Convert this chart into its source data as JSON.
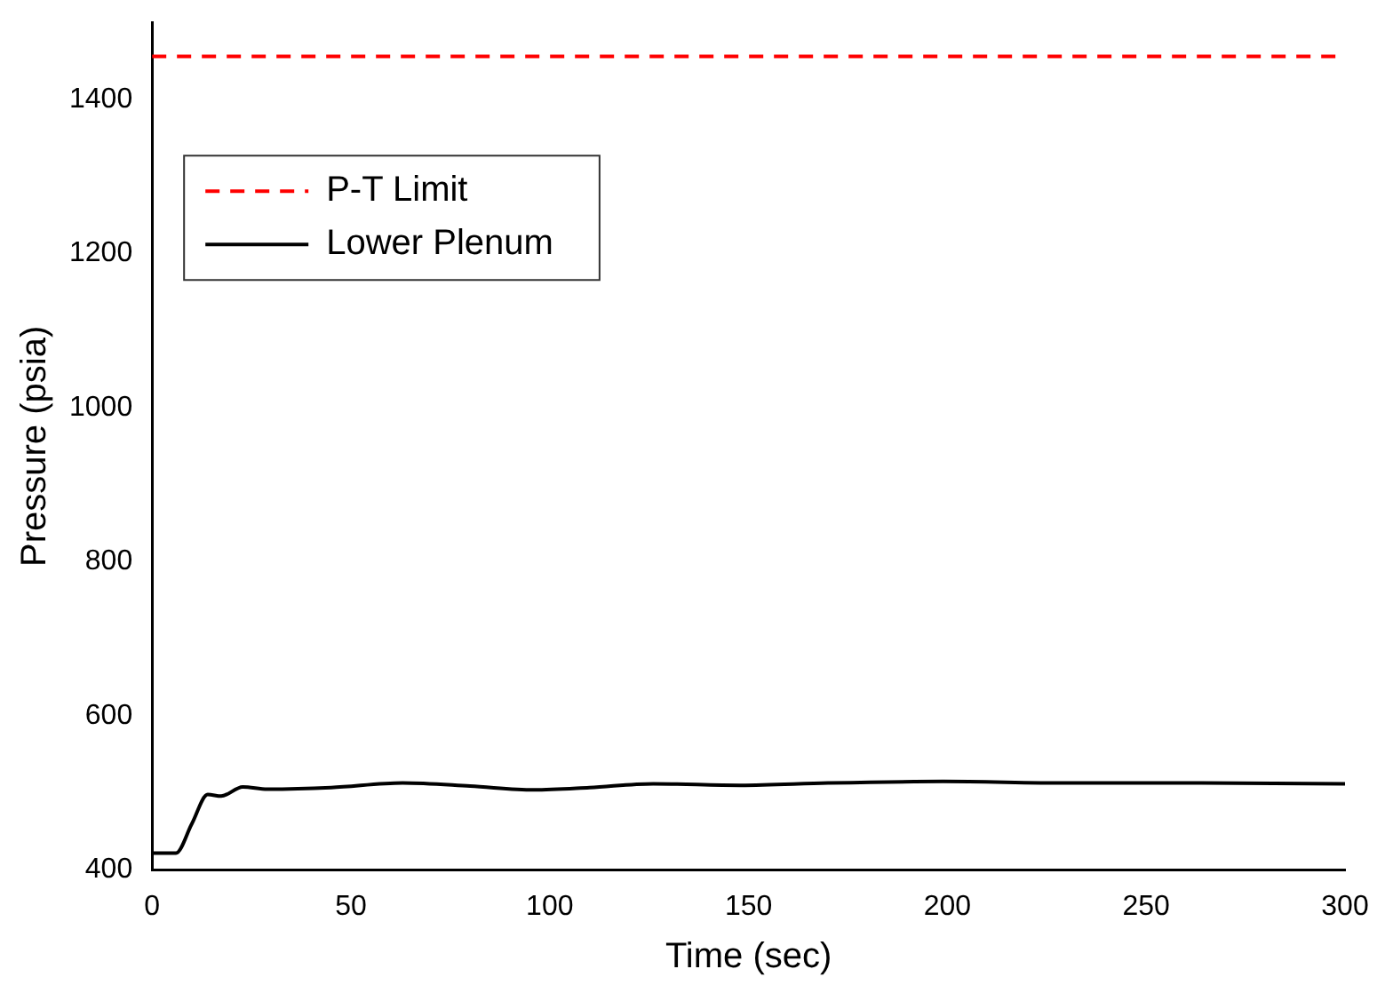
{
  "chart_data": {
    "type": "line",
    "xlabel": "Time (sec)",
    "ylabel": "Pressure (psia)",
    "xlim": [
      0,
      300
    ],
    "xticks": [
      0,
      50,
      100,
      150,
      200,
      250,
      300
    ],
    "ylim": [
      400,
      1500
    ],
    "yticks": [
      400,
      600,
      800,
      1000,
      1200,
      1400
    ],
    "grid": false,
    "legend": "top left",
    "marker": "none",
    "series": [
      {
        "name": "P-T Limit",
        "color": "#ff0000",
        "line_style": "dashed",
        "x": [
          0,
          300
        ],
        "values": [
          1456,
          1456
        ]
      },
      {
        "name": "Lower Plenum",
        "color": "#000000",
        "line_style": "solid",
        "x": [
          0,
          6,
          10,
          14,
          17.4,
          22.8,
          29,
          45,
          63,
          80,
          96,
          110,
          126,
          148,
          170,
          199,
          230,
          260,
          300
        ],
        "values": [
          422,
          422,
          460,
          498,
          496,
          508,
          505,
          507,
          513,
          509,
          504,
          507,
          512,
          510,
          513,
          515,
          513,
          513,
          512
        ]
      }
    ]
  }
}
